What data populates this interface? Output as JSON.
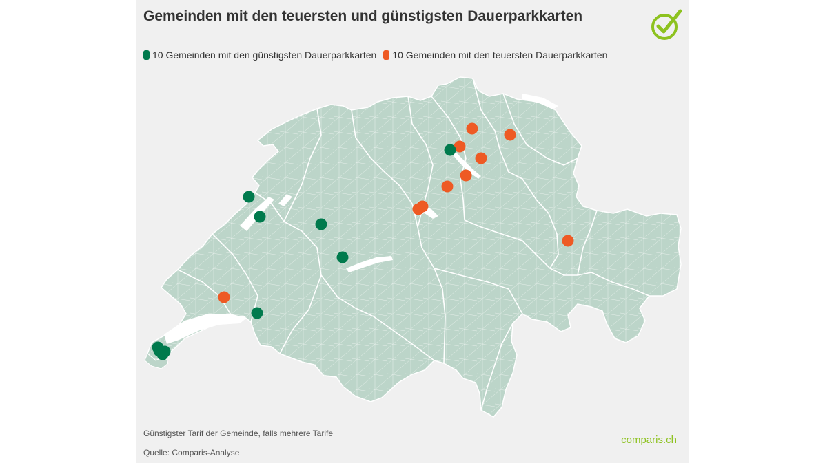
{
  "title": "Gemeinden mit den teuersten und günstigsten Dauerparkkarten",
  "legend": {
    "cheapest_label": "10 Gemeinden mit den günstigsten Dauerparkkarten",
    "expensive_label": "10 Gemeinden mit den teuersten Dauerparkkarten"
  },
  "colors": {
    "cheapest": "#007a4d",
    "expensive": "#ee5a24",
    "land": "#bcd5c9",
    "background": "#f0f0f0",
    "brand_green": "#8dc21f"
  },
  "footnote": "Günstigster Tarif der Gemeinde, falls mehrere Tarife",
  "source": "Quelle: Comparis-Analyse",
  "brand": {
    "prefix": "c",
    "middle": "o",
    "suffix": "mparis.ch"
  },
  "logo_icon": "checkmark-circle-icon"
}
